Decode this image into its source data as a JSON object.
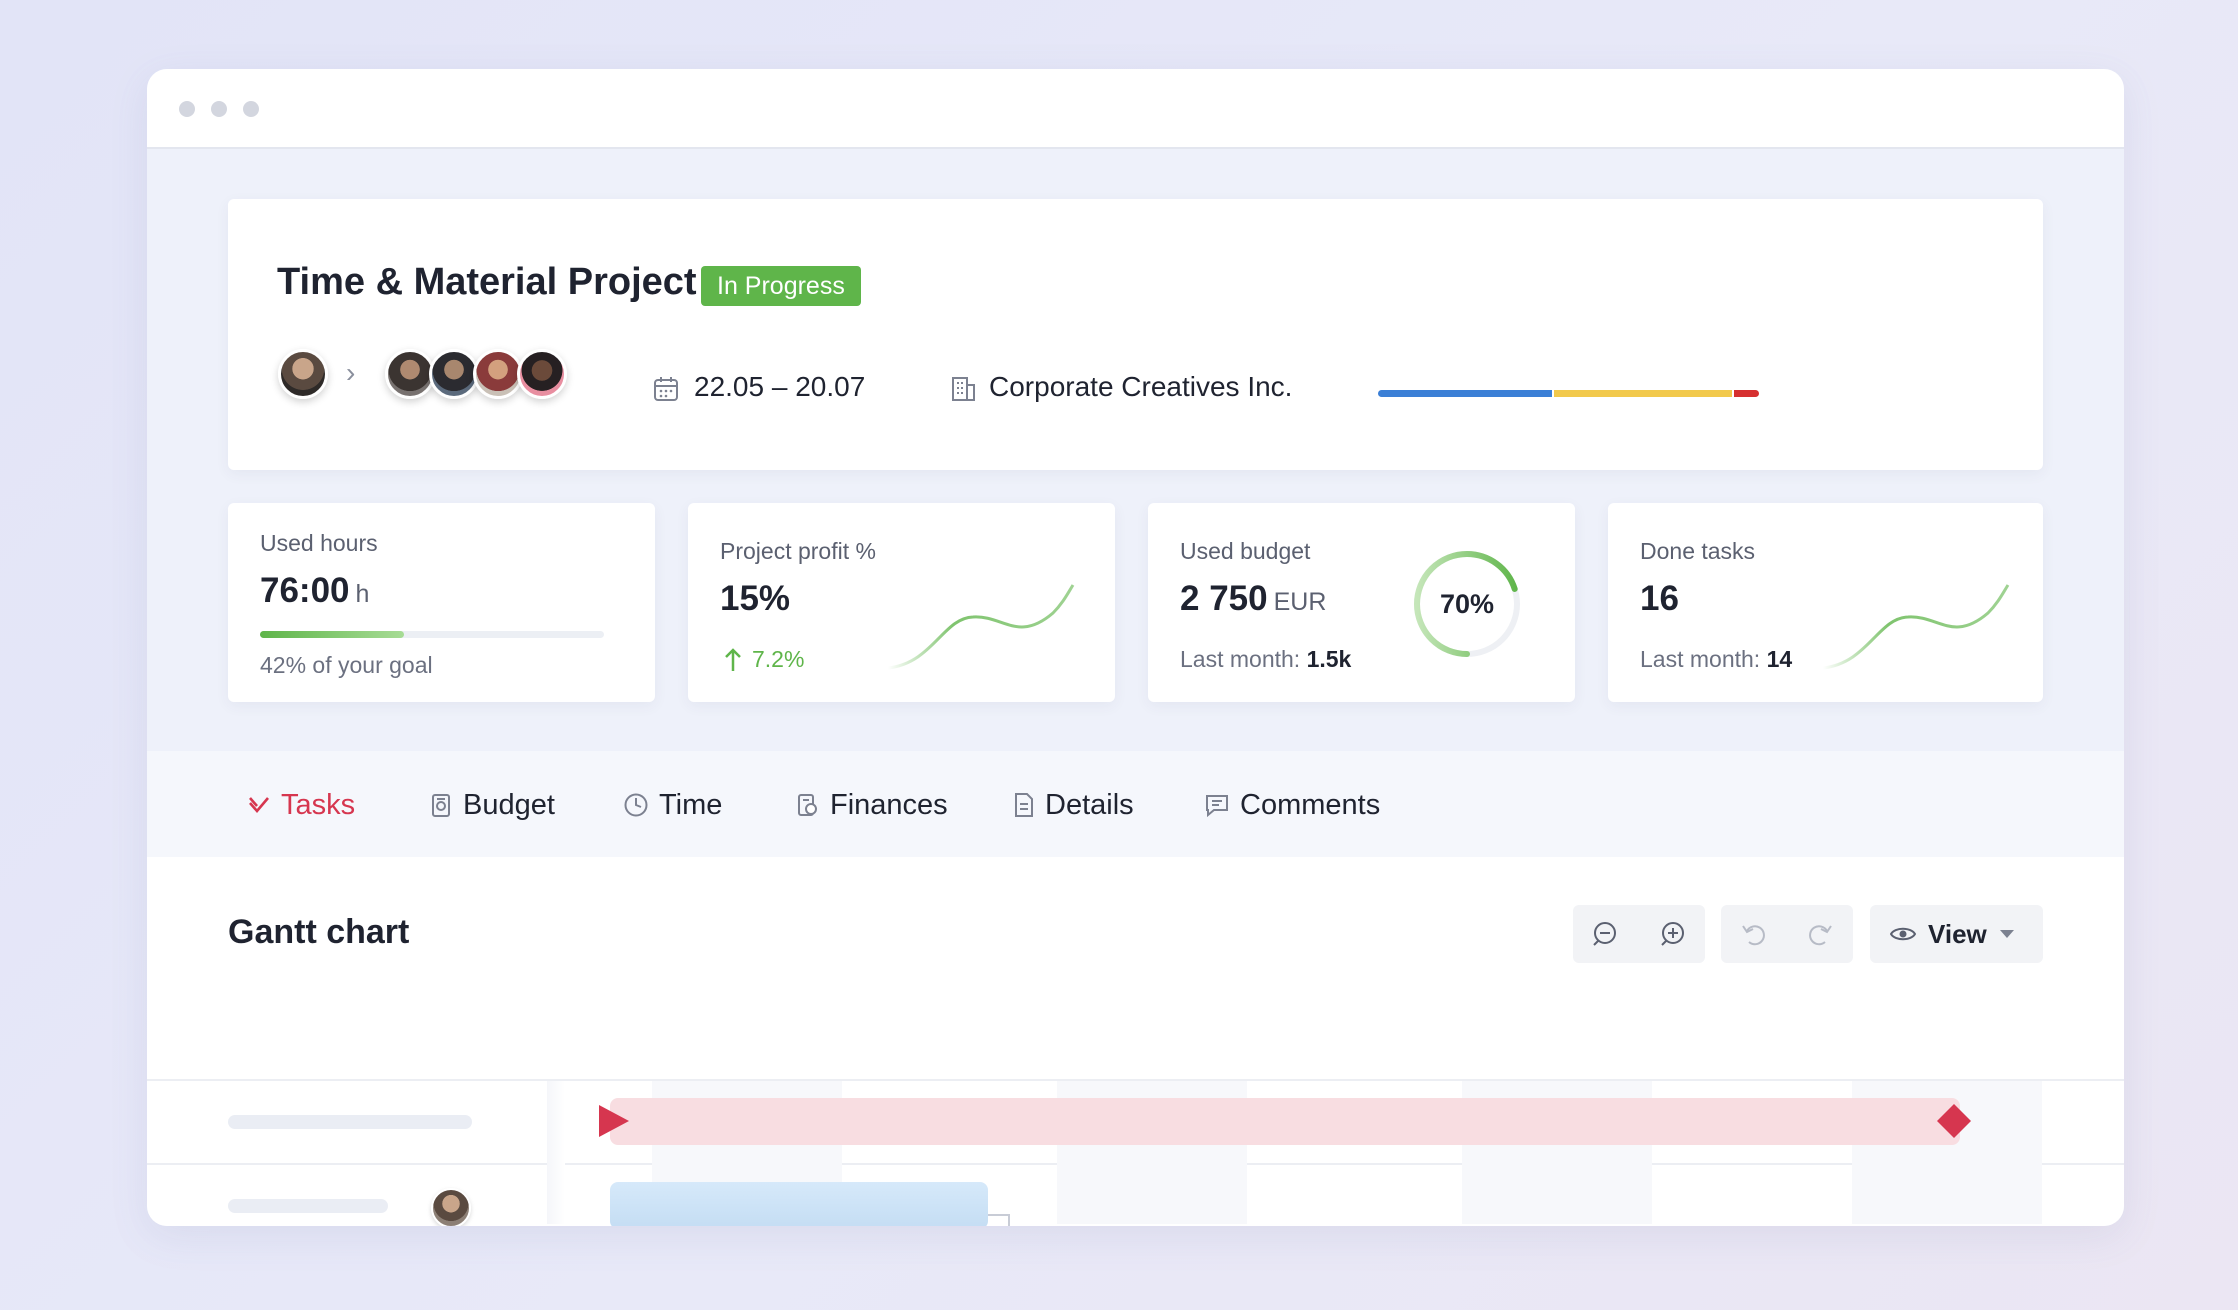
{
  "project": {
    "title": "Time & Material Project",
    "status": "In Progress",
    "date_range": "22.05 – 20.07",
    "client": "Corporate Creatives Inc.",
    "progress": [
      {
        "color": "#3b7fd6",
        "fraction": 0.46
      },
      {
        "color": "#f2c94c",
        "fraction": 0.47
      },
      {
        "color": "#d63030",
        "fraction": 0.07
      }
    ]
  },
  "stats": {
    "used_hours": {
      "label": "Used hours",
      "value": "76:00",
      "unit": "h",
      "sub": "42% of your goal",
      "progress_percent": 42
    },
    "profit": {
      "label": "Project profit %",
      "value": "15%",
      "change": "7.2%"
    },
    "budget": {
      "label": "Used budget",
      "value": "2 750",
      "unit": "EUR",
      "sub_label": "Last month:",
      "sub_value": "1.5k",
      "ring_percent_label": "70%",
      "ring_percent": 70
    },
    "tasks": {
      "label": "Done tasks",
      "value": "16",
      "sub_label": "Last month:",
      "sub_value": "14"
    }
  },
  "tabs": [
    {
      "label": "Tasks",
      "icon": "check-icon",
      "active": true
    },
    {
      "label": "Budget",
      "icon": "budget-icon"
    },
    {
      "label": "Time",
      "icon": "clock-icon"
    },
    {
      "label": "Finances",
      "icon": "finances-icon"
    },
    {
      "label": "Details",
      "icon": "document-icon"
    },
    {
      "label": "Comments",
      "icon": "comment-icon"
    }
  ],
  "gantt": {
    "title": "Gantt chart",
    "view_label": "View",
    "milestone_color": "#d6364f",
    "bar_color": "#f8dde1",
    "task_color": "#cfe4f7"
  }
}
